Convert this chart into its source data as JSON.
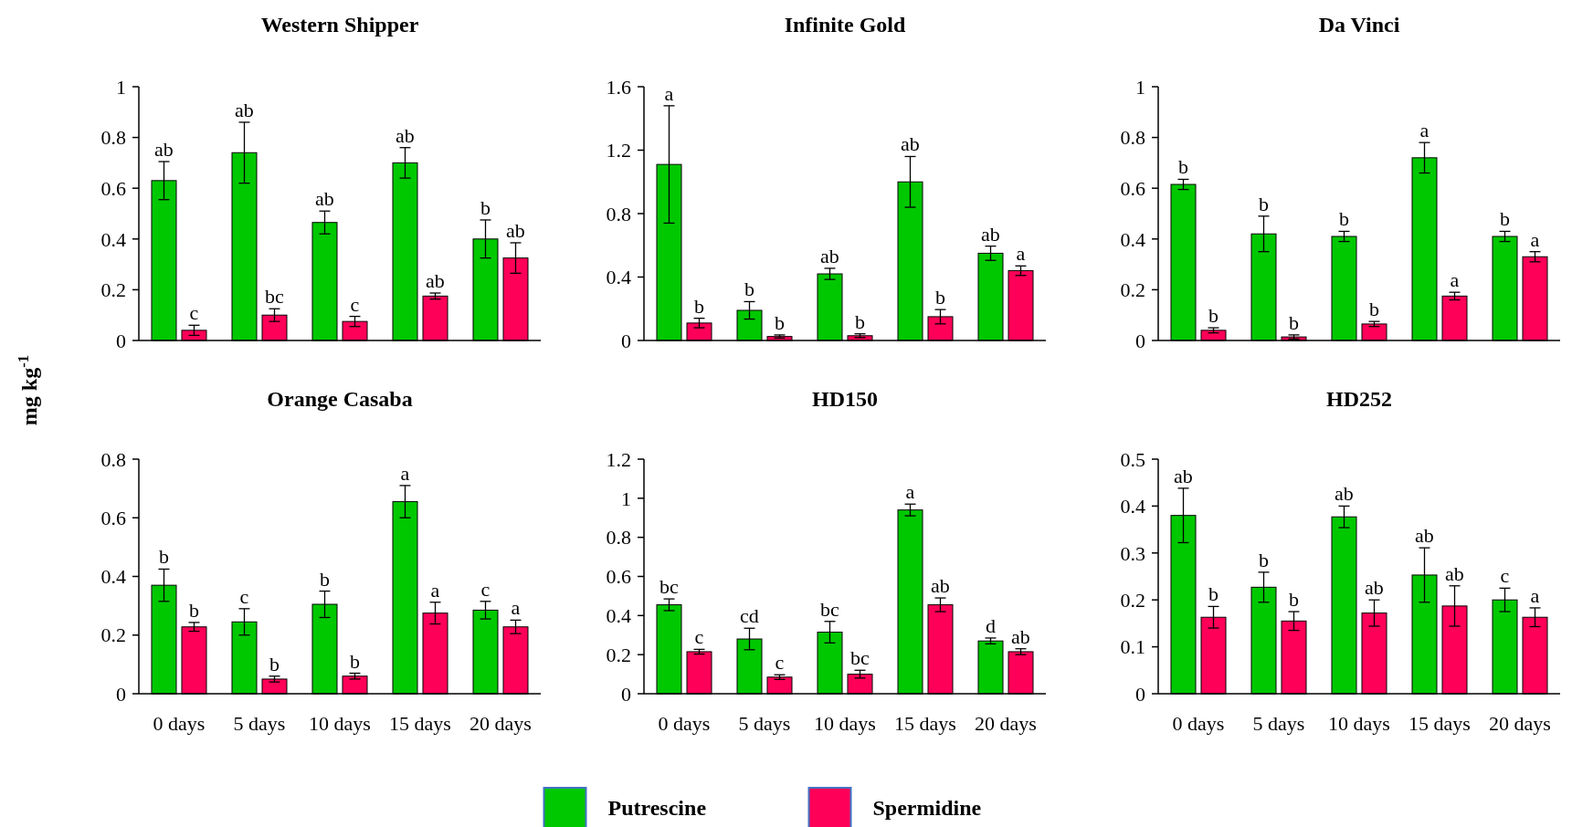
{
  "chart_data": [
    {
      "type": "bar",
      "title": "Western Shipper",
      "ylabel": "mg kg$^{-1}$",
      "categories": [
        null,
        null,
        null,
        null,
        null
      ],
      "ylim": [
        0,
        1
      ],
      "yticks": [
        0,
        0.2,
        0.4,
        0.6,
        0.8,
        1
      ],
      "tick_labels": "y",
      "series": [
        {
          "color": "#00c800",
          "values": [
            0.63,
            0.74,
            0.465,
            0.7,
            0.4
          ],
          "errors": [
            0.075,
            0.12,
            0.045,
            0.06,
            0.075
          ],
          "value_labels": [
            "ab",
            "ab",
            "ab",
            "ab",
            "b"
          ]
        },
        {
          "color": "#ff0058",
          "values": [
            0.04,
            0.1,
            0.075,
            0.175,
            0.325
          ],
          "errors": [
            0.02,
            0.025,
            0.02,
            0.012,
            0.06
          ],
          "value_labels": [
            "c",
            "bc",
            "c",
            "ab",
            "ab"
          ]
        }
      ]
    },
    {
      "type": "bar",
      "title": "Infinite  Gold",
      "categories": [
        null,
        null,
        null,
        null,
        null
      ],
      "ylim": [
        0,
        1.6
      ],
      "yticks": [
        0,
        0.4,
        0.8,
        1.2,
        1.6
      ],
      "tick_labels": "y",
      "series": [
        {
          "color": "#00c800",
          "values": [
            1.11,
            0.19,
            0.42,
            1.0,
            0.55
          ],
          "errors": [
            0.37,
            0.055,
            0.035,
            0.16,
            0.045
          ],
          "value_labels": [
            "a",
            "b",
            "ab",
            "ab",
            "ab"
          ]
        },
        {
          "color": "#ff0058",
          "values": [
            0.11,
            0.025,
            0.03,
            0.15,
            0.44
          ],
          "errors": [
            0.03,
            0.01,
            0.012,
            0.045,
            0.03
          ],
          "value_labels": [
            "b",
            "b",
            "b",
            "b",
            "a"
          ]
        }
      ]
    },
    {
      "type": "bar",
      "title": "Da Vinci",
      "categories": [
        null,
        null,
        null,
        null,
        null
      ],
      "ylim": [
        0,
        1
      ],
      "yticks": [
        0,
        0.2,
        0.4,
        0.6,
        0.8,
        1
      ],
      "tick_labels": "y",
      "series": [
        {
          "color": "#00c800",
          "values": [
            0.615,
            0.42,
            0.41,
            0.72,
            0.41
          ],
          "errors": [
            0.02,
            0.07,
            0.02,
            0.06,
            0.02
          ],
          "value_labels": [
            "b",
            "b",
            "b",
            "a",
            "b"
          ]
        },
        {
          "color": "#ff0058",
          "values": [
            0.04,
            0.014,
            0.065,
            0.175,
            0.33
          ],
          "errors": [
            0.01,
            0.008,
            0.01,
            0.015,
            0.02
          ],
          "value_labels": [
            "b",
            "b",
            "b",
            "a",
            "a"
          ]
        }
      ]
    },
    {
      "type": "bar",
      "title": "Orange  Casaba",
      "categories": [
        "0 days",
        "5 days",
        "10 days",
        "15 days",
        "20 days"
      ],
      "ylim": [
        0,
        0.8
      ],
      "yticks": [
        0,
        0.2,
        0.4,
        0.6,
        0.8
      ],
      "series": [
        {
          "color": "#00c800",
          "values": [
            0.37,
            0.245,
            0.305,
            0.655,
            0.285
          ],
          "errors": [
            0.055,
            0.045,
            0.045,
            0.055,
            0.03
          ],
          "value_labels": [
            "b",
            "c",
            "b",
            "a",
            "c"
          ]
        },
        {
          "color": "#ff0058",
          "values": [
            0.228,
            0.05,
            0.06,
            0.275,
            0.228
          ],
          "errors": [
            0.015,
            0.01,
            0.01,
            0.037,
            0.023
          ],
          "value_labels": [
            "b",
            "b",
            "b",
            "a",
            "a"
          ]
        }
      ]
    },
    {
      "type": "bar",
      "title": "HD150",
      "categories": [
        "0 days",
        "5 days",
        "10 days",
        "15 days",
        "20 days"
      ],
      "ylim": [
        0,
        1.2
      ],
      "yticks": [
        0,
        0.2,
        0.4,
        0.6,
        0.8,
        1,
        1.2
      ],
      "series": [
        {
          "color": "#00c800",
          "values": [
            0.455,
            0.28,
            0.315,
            0.94,
            0.27
          ],
          "errors": [
            0.03,
            0.055,
            0.055,
            0.03,
            0.015
          ],
          "value_labels": [
            "bc",
            "cd",
            "bc",
            "a",
            "d"
          ]
        },
        {
          "color": "#ff0058",
          "values": [
            0.215,
            0.085,
            0.1,
            0.455,
            0.215
          ],
          "errors": [
            0.012,
            0.012,
            0.02,
            0.035,
            0.015
          ],
          "value_labels": [
            "c",
            "c",
            "bc",
            "ab",
            "ab"
          ]
        }
      ]
    },
    {
      "type": "bar",
      "title": "HD252",
      "categories": [
        "0 days",
        "5 days",
        "10 days",
        "15 days",
        "20 days"
      ],
      "ylim": [
        0,
        0.5
      ],
      "yticks": [
        0,
        0.1,
        0.2,
        0.3,
        0.4,
        0.5
      ],
      "legend": "bottom",
      "series": [
        {
          "name": "Putrescine",
          "color": "#00c800",
          "values": [
            0.38,
            0.227,
            0.377,
            0.253,
            0.2
          ],
          "errors": [
            0.058,
            0.032,
            0.023,
            0.058,
            0.025
          ],
          "value_labels": [
            "ab",
            "b",
            "ab",
            "ab",
            "c"
          ]
        },
        {
          "name": "Spermidine",
          "color": "#ff0058",
          "values": [
            0.163,
            0.155,
            0.172,
            0.187,
            0.163
          ],
          "errors": [
            0.023,
            0.02,
            0.028,
            0.043,
            0.02
          ],
          "value_labels": [
            "b",
            "b",
            "ab",
            "ab",
            "a"
          ]
        }
      ]
    }
  ]
}
